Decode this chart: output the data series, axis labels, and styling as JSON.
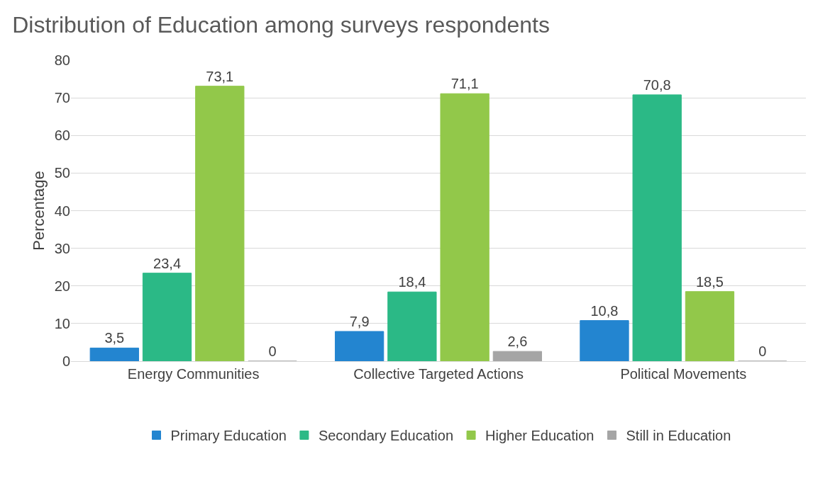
{
  "chart_data": {
    "type": "bar",
    "title": "Distribution of Education among surveys respondents",
    "ylabel": "Percentage",
    "categories": [
      "Energy Communities",
      "Collective Targeted Actions",
      "Political Movements"
    ],
    "series": [
      {
        "name": "Primary Education",
        "color": "#2385d0",
        "values": [
          3.5,
          7.9,
          10.8
        ],
        "value_labels": [
          "3,5",
          "7,9",
          "10,8"
        ]
      },
      {
        "name": "Secondary Education",
        "color": "#2bb986",
        "values": [
          23.4,
          18.4,
          70.8
        ],
        "value_labels": [
          "23,4",
          "18,4",
          "70,8"
        ]
      },
      {
        "name": "Higher Education",
        "color": "#92c84a",
        "values": [
          73.1,
          71.1,
          18.5
        ],
        "value_labels": [
          "73,1",
          "71,1",
          "18,5"
        ]
      },
      {
        "name": "Still in Education",
        "color": "#a5a5a5",
        "values": [
          0,
          2.6,
          0
        ],
        "value_labels": [
          "0",
          "2,6",
          "0"
        ]
      }
    ],
    "ylim": [
      0,
      80
    ],
    "yticks": [
      0,
      10,
      20,
      30,
      40,
      50,
      60,
      70,
      80
    ],
    "grid": "y",
    "legend": "bottom"
  }
}
